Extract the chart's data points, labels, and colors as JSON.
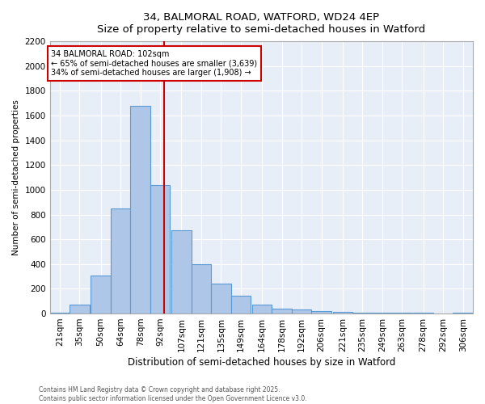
{
  "title_line1": "34, BALMORAL ROAD, WATFORD, WD24 4EP",
  "title_line2": "Size of property relative to semi-detached houses in Watford",
  "xlabel": "Distribution of semi-detached houses by size in Watford",
  "ylabel": "Number of semi-detached properties",
  "categories": [
    "21sqm",
    "35sqm",
    "50sqm",
    "64sqm",
    "78sqm",
    "92sqm",
    "107sqm",
    "121sqm",
    "135sqm",
    "149sqm",
    "164sqm",
    "178sqm",
    "192sqm",
    "206sqm",
    "221sqm",
    "235sqm",
    "249sqm",
    "263sqm",
    "278sqm",
    "292sqm",
    "306sqm"
  ],
  "bin_edges": [
    21,
    35,
    50,
    64,
    78,
    92,
    107,
    121,
    135,
    149,
    164,
    178,
    192,
    206,
    221,
    235,
    249,
    263,
    278,
    292,
    306
  ],
  "bin_width": 14,
  "values": [
    10,
    70,
    310,
    850,
    1680,
    1040,
    670,
    400,
    245,
    145,
    75,
    40,
    30,
    20,
    15,
    10,
    5,
    5,
    5,
    2,
    10
  ],
  "bar_color": "#aec6e8",
  "bar_edge_color": "#5a9ad5",
  "property_size": 102,
  "vline_color": "#cc0000",
  "annotation_text": "34 BALMORAL ROAD: 102sqm\n← 65% of semi-detached houses are smaller (3,639)\n34% of semi-detached houses are larger (1,908) →",
  "annotation_box_color": "#ffffff",
  "annotation_box_edge": "#cc0000",
  "ylim": [
    0,
    2200
  ],
  "yticks": [
    0,
    200,
    400,
    600,
    800,
    1000,
    1200,
    1400,
    1600,
    1800,
    2000,
    2200
  ],
  "background_color": "#e8eef8",
  "footer_line1": "Contains HM Land Registry data © Crown copyright and database right 2025.",
  "footer_line2": "Contains public sector information licensed under the Open Government Licence v3.0."
}
